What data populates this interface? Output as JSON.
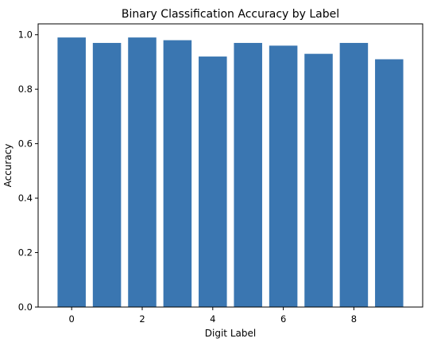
{
  "chart_data": {
    "type": "bar",
    "title": "Binary Classification Accuracy by Label",
    "xlabel": "Digit Label",
    "ylabel": "Accuracy",
    "categories": [
      0,
      1,
      2,
      3,
      4,
      5,
      6,
      7,
      8,
      9
    ],
    "values": [
      0.99,
      0.97,
      0.99,
      0.98,
      0.92,
      0.97,
      0.96,
      0.93,
      0.97,
      0.91
    ],
    "xticks": [
      "0",
      "2",
      "4",
      "6",
      "8"
    ],
    "yticks": [
      "0.0",
      "0.2",
      "0.4",
      "0.6",
      "0.8",
      "1.0"
    ],
    "xlim": [
      -0.95,
      9.95
    ],
    "ylim": [
      0,
      1.04
    ],
    "grid": false,
    "bar_color": "#3a76b1"
  }
}
